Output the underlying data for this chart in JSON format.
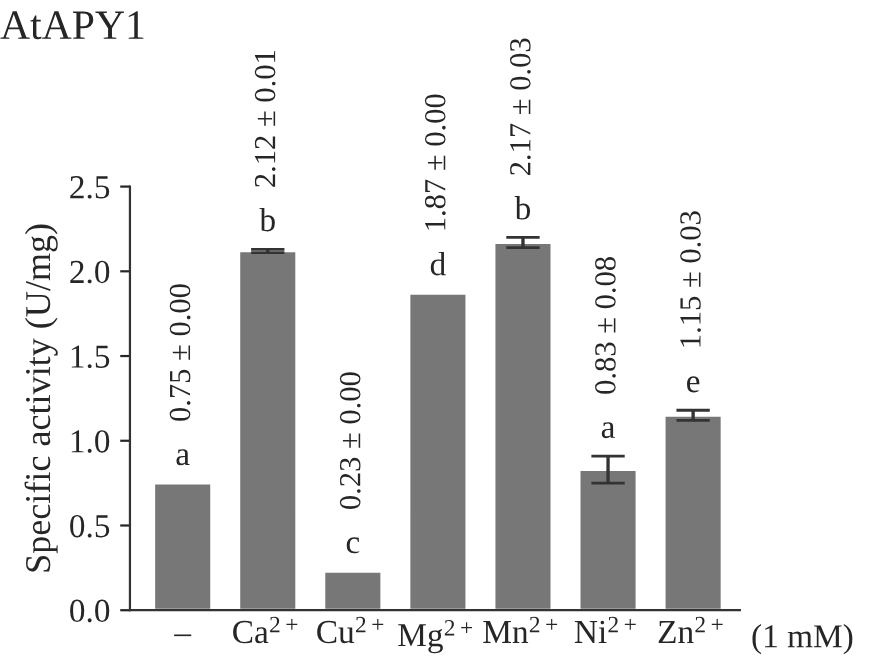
{
  "chart_data": {
    "type": "bar",
    "title": "AtAPY1",
    "ylabel": "Specific activity (U/mg)",
    "xlabel": "(1 mM)",
    "categories": [
      "–",
      "Ca$^{2+}$",
      "Cu$^{2+}$",
      "Mg$^{2+}$",
      "Mn$^{2+}$",
      "Ni$^{2+}$",
      "Zn$^{2+}$"
    ],
    "values": [
      0.75,
      2.12,
      0.23,
      1.87,
      2.17,
      0.83,
      1.15
    ],
    "color": "#777777",
    "errors": [
      0.0,
      0.01,
      0.0,
      0.0,
      0.03,
      0.08,
      0.03
    ],
    "value_labels": [
      "0.75 ± 0.00",
      "2.12 ± 0.01",
      "0.23 ± 0.00",
      "1.87 ± 0.00",
      "2.17 ± 0.03",
      "0.83 ± 0.08",
      "1.15 ± 0.03"
    ],
    "annotations": [
      {
        "text": "a",
        "x": "–",
        "y": 0.75
      },
      {
        "text": "b",
        "x": "Ca$^{2+}$",
        "y": 2.12
      },
      {
        "text": "c",
        "x": "Cu$^{2+}$",
        "y": 0.23
      },
      {
        "text": "d",
        "x": "Mg$^{2+}$",
        "y": 1.87
      },
      {
        "text": "b",
        "x": "Mn$^{2+}$",
        "y": 2.17
      },
      {
        "text": "a",
        "x": "Ni$^{2+}$",
        "y": 0.83
      },
      {
        "text": "e",
        "x": "Zn$^{2+}$",
        "y": 1.15
      }
    ],
    "ylim": [
      0,
      2.5
    ],
    "yticks": [
      {
        "value": 0,
        "label": "0.0"
      },
      {
        "value": 0.5,
        "label": "0.5"
      },
      {
        "value": 1,
        "label": "1.0"
      },
      {
        "value": 1.5,
        "label": "1.5"
      },
      {
        "value": 2,
        "label": "2.0"
      },
      {
        "value": 2.5,
        "label": "2.5"
      }
    ],
    "grid": false,
    "legend": false
  }
}
